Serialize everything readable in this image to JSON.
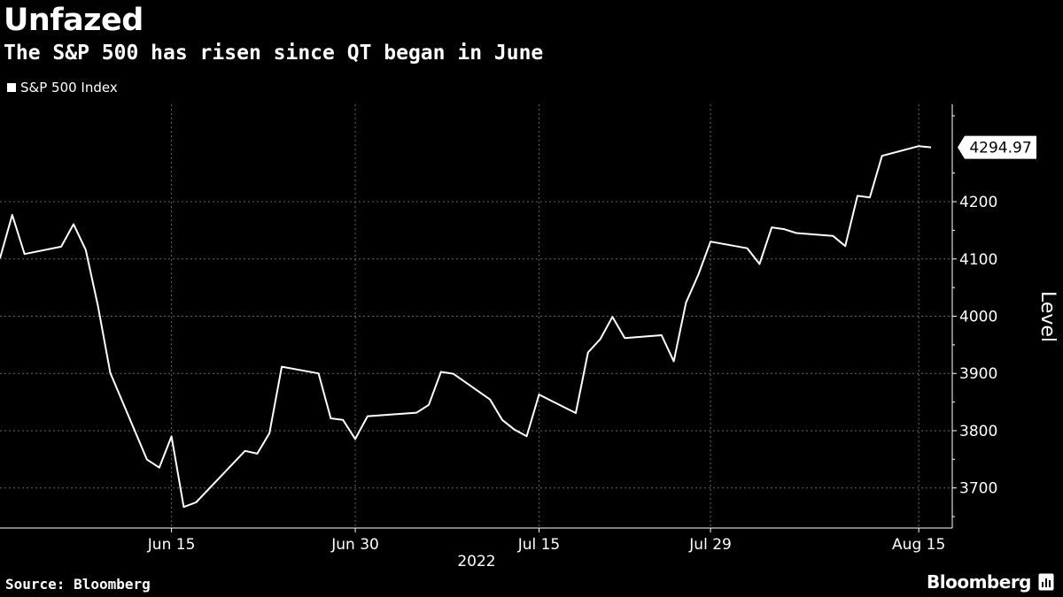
{
  "header": {
    "title": "Unfazed",
    "subtitle": "The S&P 500 has risen since QT began in June"
  },
  "legend": {
    "label": "S&P 500 Index"
  },
  "footer": {
    "source": "Source: Bloomberg",
    "brand": "Bloomberg"
  },
  "colors": {
    "background": "#000000",
    "line": "#ffffff",
    "grid": "#666666"
  },
  "chart_data": {
    "type": "line",
    "title": "Unfazed",
    "subtitle": "The S&P 500 has risen since QT began in June",
    "x_tick_labels": [
      "Jun 15",
      "Jun 30",
      "Jul 15",
      "Jul 29",
      "Aug 15"
    ],
    "x_tick_dates": [
      "2022-06-15",
      "2022-06-30",
      "2022-07-15",
      "2022-07-29",
      "2022-08-15"
    ],
    "xlabel": "2022",
    "ylabel": "Level",
    "ylim": [
      3630,
      4370
    ],
    "y_ticks": [
      3700,
      3800,
      3900,
      4000,
      4100,
      4200
    ],
    "last_value_label": "4294.97",
    "grid": true,
    "legend_position": "top-left",
    "series": [
      {
        "name": "S&P 500 Index",
        "dates": [
          "2022-06-01",
          "2022-06-02",
          "2022-06-03",
          "2022-06-06",
          "2022-06-07",
          "2022-06-08",
          "2022-06-09",
          "2022-06-10",
          "2022-06-13",
          "2022-06-14",
          "2022-06-15",
          "2022-06-16",
          "2022-06-17",
          "2022-06-21",
          "2022-06-22",
          "2022-06-23",
          "2022-06-24",
          "2022-06-27",
          "2022-06-28",
          "2022-06-29",
          "2022-06-30",
          "2022-07-01",
          "2022-07-05",
          "2022-07-06",
          "2022-07-07",
          "2022-07-08",
          "2022-07-11",
          "2022-07-12",
          "2022-07-13",
          "2022-07-14",
          "2022-07-15",
          "2022-07-18",
          "2022-07-19",
          "2022-07-20",
          "2022-07-21",
          "2022-07-22",
          "2022-07-25",
          "2022-07-26",
          "2022-07-27",
          "2022-07-28",
          "2022-07-29",
          "2022-08-01",
          "2022-08-02",
          "2022-08-03",
          "2022-08-04",
          "2022-08-05",
          "2022-08-08",
          "2022-08-09",
          "2022-08-10",
          "2022-08-11",
          "2022-08-12",
          "2022-08-15",
          "2022-08-16"
        ],
        "values": [
          4101.23,
          4176.82,
          4108.54,
          4121.43,
          4160.68,
          4115.77,
          4017.82,
          3900.86,
          3749.63,
          3735.48,
          3789.99,
          3666.77,
          3674.84,
          3764.79,
          3759.89,
          3795.73,
          3911.74,
          3900.11,
          3821.55,
          3818.83,
          3785.38,
          3825.33,
          3831.39,
          3845.08,
          3902.62,
          3899.38,
          3854.43,
          3818.8,
          3801.78,
          3790.38,
          3863.16,
          3830.85,
          3936.69,
          3959.9,
          3998.95,
          3961.63,
          3966.84,
          3921.05,
          4023.61,
          4072.43,
          4130.29,
          4118.63,
          4091.19,
          4155.17,
          4151.94,
          4145.19,
          4140.06,
          4122.47,
          4210.24,
          4207.27,
          4280.15,
          4297.14,
          4294.97
        ]
      }
    ]
  }
}
